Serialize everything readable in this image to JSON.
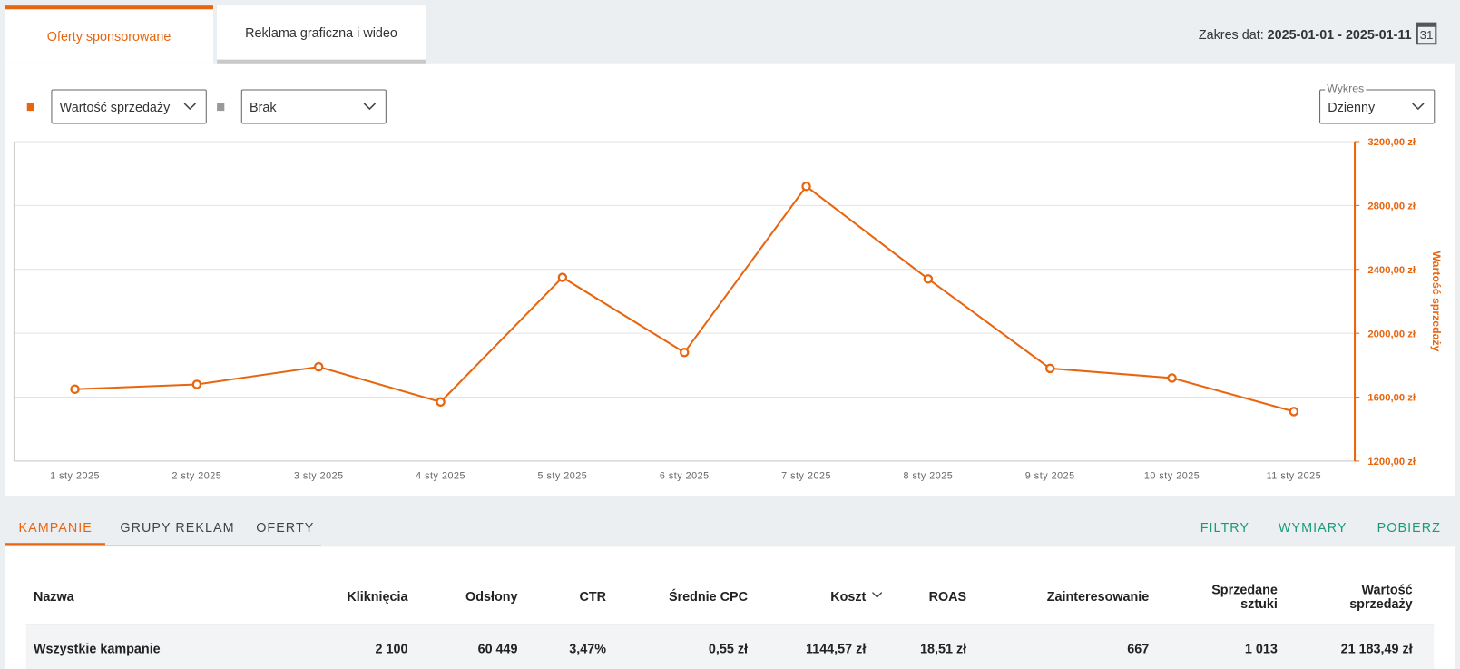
{
  "tabs": [
    "Oferty sponsorowane",
    "Reklama graficzna i wideo"
  ],
  "date_range": {
    "label": "Zakres dat:",
    "value": "2025-01-01 - 2025-01-11",
    "calendar_day": "31"
  },
  "selectors": {
    "primary": "Wartość sprzedaży",
    "secondary": "Brak",
    "chart_label": "Wykres",
    "chart_period": "Dzienny"
  },
  "chart_data": {
    "type": "line",
    "y_label": "Wartość sprzedaży",
    "y_axis_side": "right",
    "grid": true,
    "color": "#e8650f",
    "categories": [
      "1 sty 2025",
      "2 sty 2025",
      "3 sty 2025",
      "4 sty 2025",
      "5 sty 2025",
      "6 sty 2025",
      "7 sty 2025",
      "8 sty 2025",
      "9 sty 2025",
      "10 sty 2025",
      "11 sty 2025"
    ],
    "values": [
      1650,
      1680,
      1790,
      1570,
      2350,
      1880,
      2920,
      2340,
      1780,
      1720,
      1510
    ],
    "ylim": [
      1200,
      3200
    ],
    "yticks": [
      {
        "value": 1200,
        "label": "1200,00 zł"
      },
      {
        "value": 1600,
        "label": "1600,00 zł"
      },
      {
        "value": 2000,
        "label": "2000,00 zł"
      },
      {
        "value": 2400,
        "label": "2400,00 zł"
      },
      {
        "value": 2800,
        "label": "2800,00 zł"
      },
      {
        "value": 3200,
        "label": "3200,00 zł"
      }
    ]
  },
  "table_tabs": [
    "KAMPANIE",
    "GRUPY REKLAM",
    "OFERTY"
  ],
  "actions": [
    "FILTRY",
    "WYMIARY",
    "POBIERZ"
  ],
  "table": {
    "columns": [
      "Nazwa",
      "Kliknięcia",
      "Odsłony",
      "CTR",
      "Średnie CPC",
      "Koszt",
      "ROAS",
      "Zainteresowanie",
      "Sprzedane sztuki",
      "Wartość sprzedaży"
    ],
    "rows": [
      [
        "Wszystkie kampanie",
        "2 100",
        "60 449",
        "3,47%",
        "0,55 zł",
        "1144,57 zł",
        "18,51 zł",
        "667",
        "1 013",
        "21 183,49 zł"
      ]
    ]
  }
}
